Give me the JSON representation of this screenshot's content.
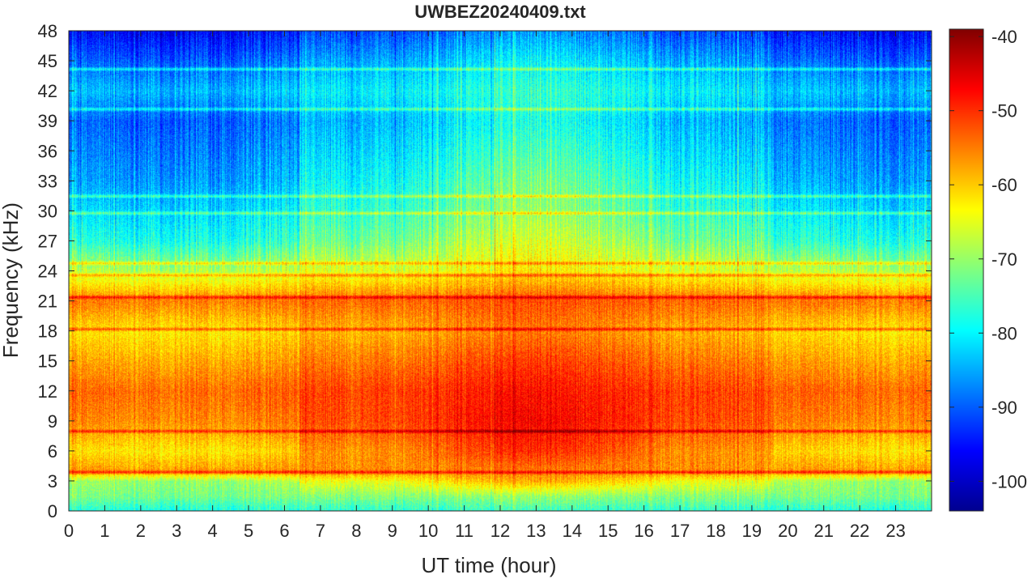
{
  "chart_data": {
    "type": "heatmap",
    "title": "UWBEZ20240409.txt",
    "xlabel": "UT time (hour)",
    "ylabel": "Frequency (kHz)",
    "xlim": [
      0,
      24
    ],
    "ylim": [
      0,
      48
    ],
    "xticks": [
      "0",
      "1",
      "2",
      "3",
      "4",
      "5",
      "6",
      "7",
      "8",
      "9",
      "10",
      "11",
      "12",
      "13",
      "14",
      "15",
      "16",
      "17",
      "18",
      "19",
      "20",
      "21",
      "22",
      "23"
    ],
    "yticks": [
      "0",
      "3",
      "6",
      "9",
      "12",
      "15",
      "18",
      "21",
      "24",
      "27",
      "30",
      "33",
      "36",
      "39",
      "42",
      "45",
      "48"
    ],
    "colorbar": {
      "colormap": "jet",
      "clim": [
        -104,
        -39
      ],
      "ticks": [
        "-100",
        "-90",
        "-80",
        "-70",
        "-60",
        "-50",
        "-40"
      ]
    },
    "intensity_profile_db": {
      "frequency_khz": [
        0,
        1.5,
        3,
        4,
        6,
        9,
        12,
        15,
        18,
        21,
        24,
        27,
        30,
        33,
        36,
        39,
        42,
        45,
        48
      ],
      "night_level": [
        -78,
        -72,
        -70,
        -57,
        -62,
        -56,
        -54,
        -58,
        -62,
        -55,
        -68,
        -78,
        -82,
        -86,
        -88,
        -90,
        -84,
        -90,
        -96
      ],
      "day_level": [
        -76,
        -70,
        -58,
        -55,
        -50,
        -47,
        -48,
        -51,
        -55,
        -52,
        -62,
        -66,
        -70,
        -72,
        -75,
        -78,
        -76,
        -80,
        -86
      ]
    },
    "narrowband_lines_khz": [
      3.9,
      8.0,
      18.2,
      21.4,
      23.6,
      24.8,
      29.8,
      31.5,
      40.2,
      44.2
    ]
  }
}
